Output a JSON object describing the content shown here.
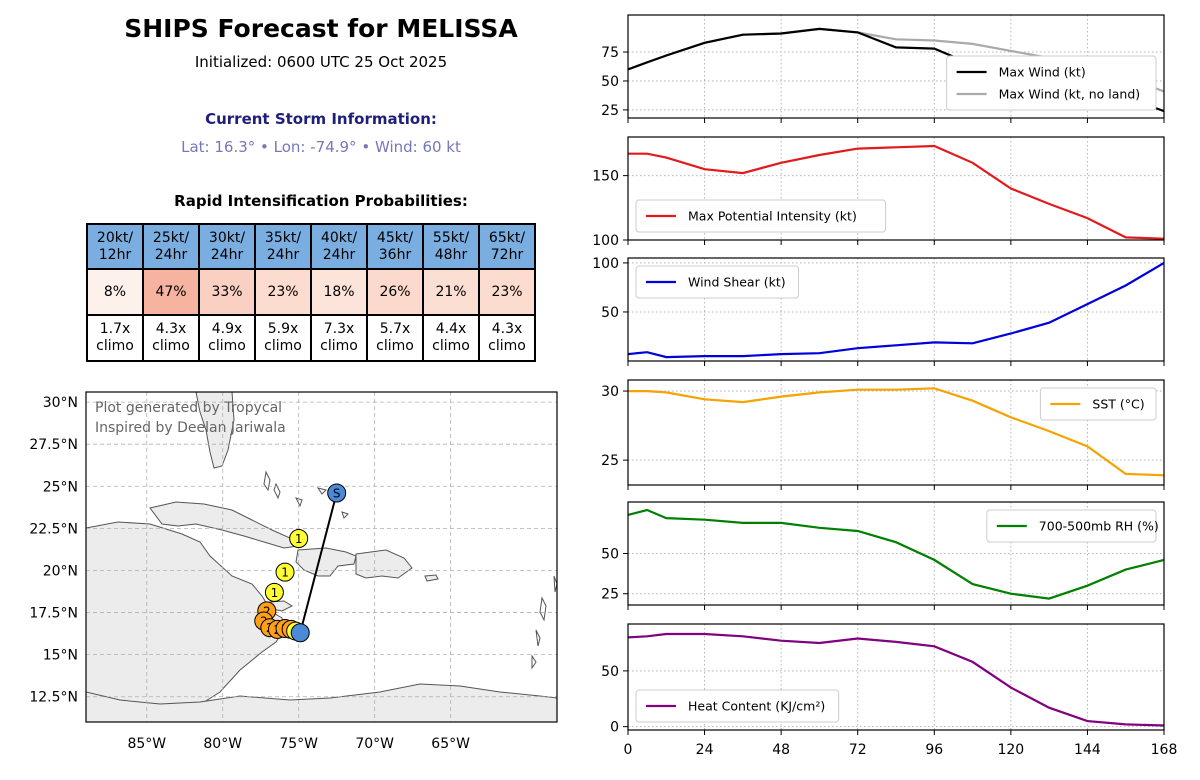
{
  "header": {
    "title": "SHIPS Forecast for MELISSA",
    "initialized": "Initialized: 0600 UTC 25 Oct 2025",
    "current_heading": "Current Storm Information:",
    "current_line": "Lat: 16.3° • Lon: -74.9° • Wind: 60 kt"
  },
  "ri": {
    "heading": "Rapid Intensification Probabilities:",
    "columns": [
      {
        "threshold": "20kt/",
        "period": "12hr",
        "prob": "8%",
        "climo_mult": "1.7x",
        "climo_word": "climo",
        "fill": "#fdf1ec"
      },
      {
        "threshold": "25kt/",
        "period": "24hr",
        "prob": "47%",
        "climo_mult": "4.3x",
        "climo_word": "climo",
        "fill": "#f6b4a0"
      },
      {
        "threshold": "30kt/",
        "period": "24hr",
        "prob": "33%",
        "climo_mult": "4.9x",
        "climo_word": "climo",
        "fill": "#f9d0c2"
      },
      {
        "threshold": "35kt/",
        "period": "24hr",
        "prob": "23%",
        "climo_mult": "5.9x",
        "climo_word": "climo",
        "fill": "#fbdccf"
      },
      {
        "threshold": "40kt/",
        "period": "24hr",
        "prob": "18%",
        "climo_mult": "7.3x",
        "climo_word": "climo",
        "fill": "#fce4da"
      },
      {
        "threshold": "45kt/",
        "period": "36hr",
        "prob": "26%",
        "climo_mult": "5.7x",
        "climo_word": "climo",
        "fill": "#fbd9cc"
      },
      {
        "threshold": "55kt/",
        "period": "48hr",
        "prob": "21%",
        "climo_mult": "4.4x",
        "climo_word": "climo",
        "fill": "#fcdfd3"
      },
      {
        "threshold": "65kt/",
        "period": "72hr",
        "prob": "23%",
        "climo_mult": "4.3x",
        "climo_word": "climo",
        "fill": "#fbdccf"
      }
    ]
  },
  "map": {
    "credit_line1": "Plot generated by Tropycal",
    "credit_line2": "Inspired by Deelan Jariwala",
    "lat_ticks": [
      {
        "value": 30,
        "label": "30°N"
      },
      {
        "value": 27.5,
        "label": "27.5°N"
      },
      {
        "value": 25,
        "label": "25°N"
      },
      {
        "value": 22.5,
        "label": "22.5°N"
      },
      {
        "value": 20,
        "label": "20°N"
      },
      {
        "value": 17.5,
        "label": "17.5°N"
      },
      {
        "value": 15,
        "label": "15°N"
      },
      {
        "value": 12.5,
        "label": "12.5°N"
      }
    ],
    "lon_ticks": [
      {
        "value": -85,
        "label": "85°W"
      },
      {
        "value": -80,
        "label": "80°W"
      },
      {
        "value": -75,
        "label": "75°W"
      },
      {
        "value": -70,
        "label": "70°W"
      },
      {
        "value": -65,
        "label": "65°W"
      }
    ],
    "track": [
      {
        "lon": -74.9,
        "lat": 16.3,
        "label": "",
        "color": "#4a8ad8"
      },
      {
        "lon": -75.2,
        "lat": 16.4,
        "label": "1",
        "color": "#ffff33"
      },
      {
        "lon": -75.5,
        "lat": 16.5,
        "label": "2",
        "color": "#ff9f1a"
      },
      {
        "lon": -75.9,
        "lat": 16.55,
        "label": "2",
        "color": "#ff9f1a"
      },
      {
        "lon": -76.4,
        "lat": 16.5,
        "label": "2",
        "color": "#ff9f1a"
      },
      {
        "lon": -76.9,
        "lat": 16.6,
        "label": "2",
        "color": "#ff9f1a"
      },
      {
        "lon": -77.3,
        "lat": 17.0,
        "label": "2",
        "color": "#ff9f1a"
      },
      {
        "lon": -77.1,
        "lat": 17.6,
        "label": "2",
        "color": "#ff9f1a"
      },
      {
        "lon": -76.6,
        "lat": 18.7,
        "label": "1",
        "color": "#ffff33"
      },
      {
        "lon": -75.9,
        "lat": 19.9,
        "label": "1",
        "color": "#ffff33"
      },
      {
        "lon": -75.0,
        "lat": 21.9,
        "label": "1",
        "color": "#ffff33"
      },
      {
        "lon": -72.5,
        "lat": 24.6,
        "label": "S",
        "color": "#4a8ad8"
      }
    ]
  },
  "panels_x_ticks": [
    0,
    24,
    48,
    72,
    96,
    120,
    144,
    168
  ],
  "chart_data": [
    {
      "type": "line",
      "x": [
        0,
        6,
        12,
        24,
        36,
        48,
        60,
        72,
        84,
        96,
        108,
        120,
        132,
        144,
        156,
        168
      ],
      "series": [
        {
          "name": "Max Wind (kt)",
          "color": "#000000",
          "values": [
            60,
            66,
            72,
            83,
            90,
            91,
            95,
            92,
            79,
            78,
            64,
            58,
            53,
            46,
            36,
            24
          ]
        },
        {
          "name": "Max Wind (kt, no land)",
          "color": "#aaaaaa",
          "values": [
            60,
            66,
            72,
            83,
            90,
            91,
            95,
            92,
            86,
            85,
            82,
            76,
            70,
            63,
            53,
            41
          ]
        }
      ],
      "ylim": [
        18,
        107
      ],
      "yticks": [
        25,
        50,
        75
      ],
      "legend": "lower-right",
      "grid": true
    },
    {
      "type": "line",
      "x": [
        0,
        6,
        12,
        24,
        36,
        48,
        60,
        72,
        84,
        96,
        108,
        120,
        132,
        144,
        156,
        168
      ],
      "series": [
        {
          "name": "Max Potential Intensity (kt)",
          "color": "#e31a1c",
          "values": [
            167,
            167,
            164,
            155,
            152,
            160,
            166,
            171,
            172,
            173,
            160,
            140,
            128,
            117,
            102,
            101
          ]
        }
      ],
      "ylim": [
        100,
        180
      ],
      "yticks": [
        100,
        150
      ],
      "legend": "lower-left",
      "grid": true
    },
    {
      "type": "line",
      "x": [
        0,
        6,
        12,
        24,
        36,
        48,
        60,
        72,
        84,
        96,
        108,
        120,
        132,
        144,
        156,
        168
      ],
      "series": [
        {
          "name": "Wind Shear (kt)",
          "color": "#0000dd",
          "values": [
            7,
            9,
            4,
            5,
            5,
            7,
            8,
            13,
            16,
            19,
            18,
            28,
            39,
            58,
            77,
            100
          ]
        }
      ],
      "ylim": [
        0,
        105
      ],
      "yticks": [
        50,
        100
      ],
      "legend": "upper-left",
      "grid": true
    },
    {
      "type": "line",
      "x": [
        0,
        6,
        12,
        24,
        36,
        48,
        60,
        72,
        84,
        96,
        108,
        120,
        132,
        144,
        156,
        168
      ],
      "series": [
        {
          "name": "SST (°C)",
          "color": "#f5a300",
          "values": [
            30.0,
            30.0,
            29.9,
            29.4,
            29.2,
            29.6,
            29.9,
            30.1,
            30.1,
            30.2,
            29.3,
            28.1,
            27.1,
            26.0,
            24.0,
            23.9
          ]
        }
      ],
      "ylim": [
        23.2,
        30.8
      ],
      "yticks": [
        25,
        30
      ],
      "legend": "upper-right",
      "grid": true
    },
    {
      "type": "line",
      "x": [
        0,
        6,
        12,
        24,
        36,
        48,
        60,
        72,
        84,
        96,
        108,
        120,
        132,
        144,
        156,
        168
      ],
      "series": [
        {
          "name": "700-500mb RH (%)",
          "color": "#008000",
          "values": [
            74,
            77,
            72,
            71,
            69,
            69,
            66,
            64,
            57,
            46,
            31,
            25,
            22,
            30,
            40,
            46
          ]
        }
      ],
      "ylim": [
        18,
        82
      ],
      "yticks": [
        25,
        50
      ],
      "legend": "upper-right",
      "grid": true
    },
    {
      "type": "line",
      "x": [
        0,
        6,
        12,
        24,
        36,
        48,
        60,
        72,
        84,
        96,
        108,
        120,
        132,
        144,
        156,
        168
      ],
      "series": [
        {
          "name": "Heat Content (KJ/cm²)",
          "color": "#800080",
          "values": [
            80,
            81,
            83,
            83,
            81,
            77,
            75,
            79,
            76,
            72,
            58,
            35,
            17,
            5,
            2,
            1
          ]
        }
      ],
      "ylim": [
        -3,
        92
      ],
      "yticks": [
        0,
        50
      ],
      "legend": "lower-left",
      "grid": true
    }
  ]
}
